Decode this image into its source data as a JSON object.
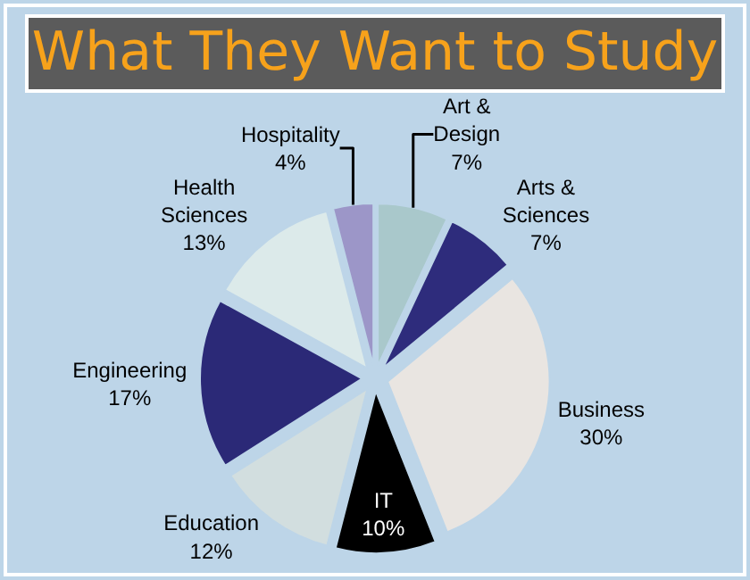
{
  "chart_data": {
    "type": "pie",
    "title": "What They Want to Study",
    "categories": [
      "Art & Design",
      "Arts & Sciences",
      "Business",
      "IT",
      "Education",
      "Engineering",
      "Health Sciences",
      "Hospitality"
    ],
    "values": [
      7,
      7,
      30,
      10,
      12,
      17,
      13,
      4
    ],
    "value_labels": [
      "7%",
      "7%",
      "30%",
      "10%",
      "12%",
      "17%",
      "13%",
      "4%"
    ],
    "colors": [
      "#a9c8cb",
      "#2e2c7c",
      "#e9e5e1",
      "#000000",
      "#d2dedf",
      "#2b2977",
      "#dceaea",
      "#9c96c8"
    ],
    "legend": false
  }
}
